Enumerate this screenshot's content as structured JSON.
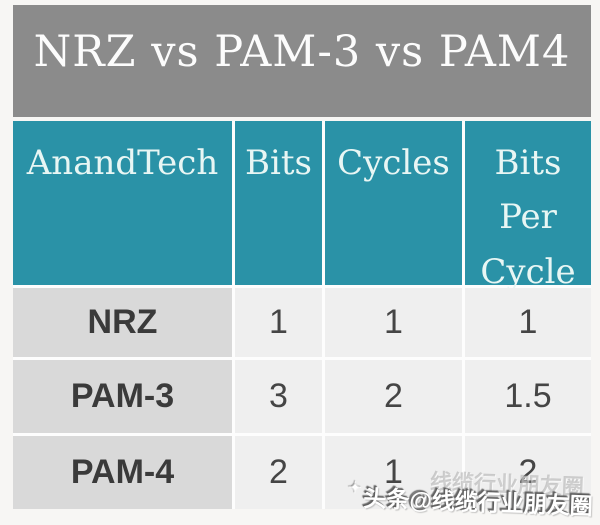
{
  "title": {
    "text": "NRZ vs PAM-3 vs PAM4"
  },
  "chart_data": {
    "type": "table",
    "title": "NRZ vs PAM-3 vs PAM4",
    "columns": [
      "AnandTech",
      "Bits",
      "Cycles",
      "Bits Per Cycle"
    ],
    "rows": [
      {
        "label": "NRZ",
        "values": [
          "1",
          "1",
          "1"
        ]
      },
      {
        "label": "PAM-3",
        "values": [
          "3",
          "2",
          "1.5"
        ]
      },
      {
        "label": "PAM-4",
        "values": [
          "2",
          "1",
          "2"
        ]
      }
    ]
  },
  "watermark": {
    "text": "头条@线缆行业朋友圈",
    "ghost_text": "线缆行业朋友圈",
    "sparkle_icon": "✦"
  },
  "colors": {
    "page_background": "#f7f6f4",
    "title_band": "#8b8b8b",
    "title_text": "#fcfcfc",
    "header_teal": "#2a92a7",
    "header_text": "#e8f6f4",
    "label_cell": "#d9d9d9",
    "value_cell": "#efefef",
    "body_text": "#3a3a3a"
  }
}
